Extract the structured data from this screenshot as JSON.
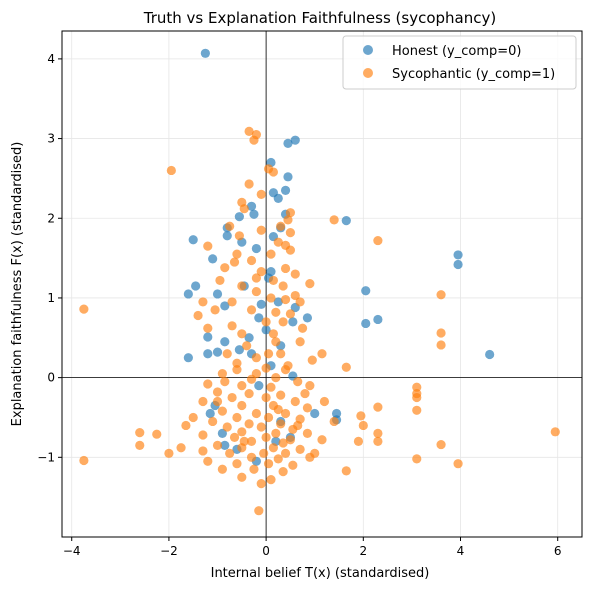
{
  "chart_data": {
    "type": "scatter",
    "title": "Truth vs Explanation Faithfulness (sycophancy)",
    "xlabel": "Internal belief T(x) (standardised)",
    "ylabel": "Explanation faithfulness F(x) (standardised)",
    "xlim": [
      -4.2,
      6.5
    ],
    "ylim": [
      -2.0,
      4.35
    ],
    "xticks": [
      -4,
      -2,
      0,
      2,
      4,
      6
    ],
    "yticks": [
      -1,
      0,
      1,
      2,
      3,
      4
    ],
    "grid": true,
    "reference_lines": {
      "x": 0,
      "y": 0
    },
    "legend_position": "top-right",
    "series": [
      {
        "name": "Honest (y_comp=0)",
        "color": "#1f77b4",
        "points": [
          [
            -1.25,
            4.07
          ],
          [
            0.6,
            2.98
          ],
          [
            0.45,
            2.94
          ],
          [
            0.1,
            2.7
          ],
          [
            0.45,
            2.52
          ],
          [
            0.4,
            2.35
          ],
          [
            0.15,
            2.32
          ],
          [
            0.25,
            2.25
          ],
          [
            -0.3,
            2.15
          ],
          [
            -0.55,
            2.02
          ],
          [
            -0.25,
            2.05
          ],
          [
            0.4,
            2.05
          ],
          [
            1.65,
            1.97
          ],
          [
            0.3,
            1.88
          ],
          [
            -0.8,
            1.88
          ],
          [
            -1.5,
            1.73
          ],
          [
            -0.5,
            1.7
          ],
          [
            0.15,
            1.77
          ],
          [
            -0.8,
            1.78
          ],
          [
            -0.2,
            1.62
          ],
          [
            3.95,
            1.54
          ],
          [
            3.95,
            1.42
          ],
          [
            -1.1,
            1.49
          ],
          [
            0.1,
            1.33
          ],
          [
            -1.45,
            1.15
          ],
          [
            0.05,
            1.25
          ],
          [
            -1.6,
            1.05
          ],
          [
            2.05,
            1.09
          ],
          [
            -0.45,
            1.15
          ],
          [
            -1.0,
            1.05
          ],
          [
            -0.85,
            0.9
          ],
          [
            0.25,
            0.95
          ],
          [
            -0.1,
            0.92
          ],
          [
            0.6,
            0.88
          ],
          [
            -0.15,
            0.75
          ],
          [
            0.0,
            0.6
          ],
          [
            0.85,
            0.75
          ],
          [
            2.3,
            0.73
          ],
          [
            2.05,
            0.68
          ],
          [
            0.55,
            0.7
          ],
          [
            -1.2,
            0.51
          ],
          [
            -0.85,
            0.45
          ],
          [
            -0.35,
            0.5
          ],
          [
            0.3,
            0.4
          ],
          [
            -0.55,
            0.35
          ],
          [
            -1.0,
            0.32
          ],
          [
            -1.2,
            0.3
          ],
          [
            -1.6,
            0.25
          ],
          [
            -0.3,
            0.3
          ],
          [
            4.6,
            0.29
          ],
          [
            0.1,
            0.15
          ],
          [
            0.55,
            0.02
          ],
          [
            -0.15,
            -0.1
          ],
          [
            -1.05,
            -0.35
          ],
          [
            -1.15,
            -0.45
          ],
          [
            1.45,
            -0.45
          ],
          [
            1.45,
            -0.53
          ],
          [
            -0.9,
            -0.7
          ],
          [
            -0.85,
            -0.85
          ],
          [
            0.2,
            -0.8
          ],
          [
            -0.6,
            -0.9
          ],
          [
            -0.2,
            -1.05
          ],
          [
            0.5,
            -0.75
          ],
          [
            1.0,
            -0.45
          ],
          [
            0.3,
            -0.55
          ]
        ]
      },
      {
        "name": "Sycophantic (y_comp=1)",
        "color": "#ff7f0e",
        "points": [
          [
            -0.35,
            3.09
          ],
          [
            -0.2,
            3.05
          ],
          [
            -0.25,
            2.98
          ],
          [
            -1.95,
            2.6
          ],
          [
            0.05,
            2.62
          ],
          [
            0.15,
            2.58
          ],
          [
            -0.35,
            2.43
          ],
          [
            -0.5,
            2.2
          ],
          [
            -0.1,
            2.3
          ],
          [
            -0.45,
            2.12
          ],
          [
            0.5,
            2.07
          ],
          [
            0.45,
            1.98
          ],
          [
            1.4,
            1.98
          ],
          [
            -0.75,
            1.9
          ],
          [
            0.3,
            1.9
          ],
          [
            -0.1,
            1.85
          ],
          [
            -0.55,
            1.78
          ],
          [
            0.25,
            1.7
          ],
          [
            2.3,
            1.72
          ],
          [
            0.5,
            1.82
          ],
          [
            -1.2,
            1.65
          ],
          [
            0.4,
            1.66
          ],
          [
            -0.6,
            1.55
          ],
          [
            0.1,
            1.55
          ],
          [
            0.5,
            1.6
          ],
          [
            -0.65,
            1.45
          ],
          [
            -0.3,
            1.47
          ],
          [
            -0.85,
            1.38
          ],
          [
            0.4,
            1.37
          ],
          [
            -0.1,
            1.33
          ],
          [
            -0.2,
            1.25
          ],
          [
            0.6,
            1.3
          ],
          [
            -0.95,
            1.22
          ],
          [
            0.15,
            1.22
          ],
          [
            -0.5,
            1.15
          ],
          [
            0.35,
            1.15
          ],
          [
            0.9,
            1.18
          ],
          [
            -0.2,
            1.08
          ],
          [
            0.6,
            1.03
          ],
          [
            3.6,
            1.04
          ],
          [
            -1.3,
            0.95
          ],
          [
            -0.7,
            0.95
          ],
          [
            0.1,
            1.0
          ],
          [
            0.4,
            0.98
          ],
          [
            0.7,
            0.95
          ],
          [
            -3.75,
            0.86
          ],
          [
            -1.05,
            0.85
          ],
          [
            -0.3,
            0.85
          ],
          [
            0.2,
            0.82
          ],
          [
            0.5,
            0.8
          ],
          [
            -1.4,
            0.78
          ],
          [
            -0.7,
            0.65
          ],
          [
            0.0,
            0.7
          ],
          [
            0.35,
            0.7
          ],
          [
            0.75,
            0.62
          ],
          [
            -1.2,
            0.62
          ],
          [
            -0.5,
            0.55
          ],
          [
            0.15,
            0.55
          ],
          [
            3.6,
            0.56
          ],
          [
            -0.4,
            0.4
          ],
          [
            0.2,
            0.45
          ],
          [
            0.7,
            0.45
          ],
          [
            3.6,
            0.41
          ],
          [
            -0.8,
            0.3
          ],
          [
            -0.2,
            0.25
          ],
          [
            0.3,
            0.3
          ],
          [
            1.15,
            0.3
          ],
          [
            0.95,
            0.22
          ],
          [
            -0.6,
            0.18
          ],
          [
            0.0,
            0.12
          ],
          [
            0.4,
            0.1
          ],
          [
            1.65,
            0.13
          ],
          [
            -0.9,
            0.05
          ],
          [
            -0.3,
            -0.02
          ],
          [
            0.2,
            0.0
          ],
          [
            0.65,
            -0.05
          ],
          [
            -1.2,
            -0.08
          ],
          [
            -0.5,
            -0.1
          ],
          [
            0.1,
            -0.12
          ],
          [
            0.9,
            -0.1
          ],
          [
            3.1,
            -0.12
          ],
          [
            -1.0,
            -0.18
          ],
          [
            -0.35,
            -0.2
          ],
          [
            0.3,
            -0.22
          ],
          [
            3.1,
            -0.2
          ],
          [
            -0.7,
            -0.25
          ],
          [
            0.0,
            -0.25
          ],
          [
            0.6,
            -0.3
          ],
          [
            -1.3,
            -0.3
          ],
          [
            1.2,
            -0.3
          ],
          [
            3.1,
            -0.25
          ],
          [
            -0.5,
            -0.35
          ],
          [
            0.15,
            -0.35
          ],
          [
            0.85,
            -0.38
          ],
          [
            2.3,
            -0.37
          ],
          [
            -0.9,
            -0.42
          ],
          [
            -0.2,
            -0.45
          ],
          [
            0.4,
            -0.45
          ],
          [
            3.1,
            -0.41
          ],
          [
            -1.5,
            -0.5
          ],
          [
            -0.6,
            -0.5
          ],
          [
            0.05,
            -0.5
          ],
          [
            0.7,
            -0.52
          ],
          [
            1.95,
            -0.48
          ],
          [
            -1.1,
            -0.55
          ],
          [
            -0.35,
            -0.58
          ],
          [
            0.3,
            -0.58
          ],
          [
            1.4,
            -0.55
          ],
          [
            -1.65,
            -0.6
          ],
          [
            -0.8,
            -0.62
          ],
          [
            -0.1,
            -0.62
          ],
          [
            0.55,
            -0.65
          ],
          [
            2.0,
            -0.6
          ],
          [
            -0.5,
            -0.68
          ],
          [
            0.2,
            -0.7
          ],
          [
            0.85,
            -0.7
          ],
          [
            -2.6,
            -0.69
          ],
          [
            -2.25,
            -0.71
          ],
          [
            -1.3,
            -0.72
          ],
          [
            -0.65,
            -0.75
          ],
          [
            0.0,
            -0.75
          ],
          [
            0.5,
            -0.78
          ],
          [
            1.15,
            -0.78
          ],
          [
            2.3,
            -0.7
          ],
          [
            -0.3,
            -0.8
          ],
          [
            0.35,
            -0.82
          ],
          [
            1.9,
            -0.8
          ],
          [
            2.3,
            -0.8
          ],
          [
            5.95,
            -0.68
          ],
          [
            -2.6,
            -0.85
          ],
          [
            -1.0,
            -0.85
          ],
          [
            -0.5,
            -0.88
          ],
          [
            0.15,
            -0.88
          ],
          [
            0.7,
            -0.9
          ],
          [
            3.6,
            -0.84
          ],
          [
            -1.75,
            -0.88
          ],
          [
            -1.3,
            -0.92
          ],
          [
            -0.75,
            -0.95
          ],
          [
            -0.05,
            -0.95
          ],
          [
            0.4,
            -0.95
          ],
          [
            1.0,
            -0.95
          ],
          [
            -2.0,
            -0.95
          ],
          [
            -0.3,
            -1.0
          ],
          [
            0.25,
            -1.02
          ],
          [
            0.9,
            -1.0
          ],
          [
            3.1,
            -1.02
          ],
          [
            -3.75,
            -1.04
          ],
          [
            -1.2,
            -1.05
          ],
          [
            -0.6,
            -1.08
          ],
          [
            0.05,
            -1.08
          ],
          [
            0.55,
            -1.1
          ],
          [
            3.95,
            -1.08
          ],
          [
            -0.9,
            -1.15
          ],
          [
            -0.25,
            -1.15
          ],
          [
            0.35,
            -1.18
          ],
          [
            1.65,
            -1.17
          ],
          [
            -0.5,
            -1.25
          ],
          [
            0.1,
            -1.28
          ],
          [
            -0.1,
            -1.33
          ],
          [
            -0.15,
            -1.67
          ],
          [
            -1.0,
            -0.3
          ],
          [
            0.8,
            -0.2
          ],
          [
            -0.2,
            0.05
          ],
          [
            0.45,
            0.15
          ],
          [
            -0.45,
            -0.8
          ],
          [
            0.65,
            -0.6
          ],
          [
            -0.85,
            -0.05
          ],
          [
            0.25,
            -0.4
          ],
          [
            -0.6,
            0.1
          ],
          [
            0.05,
            0.3
          ]
        ]
      }
    ]
  }
}
